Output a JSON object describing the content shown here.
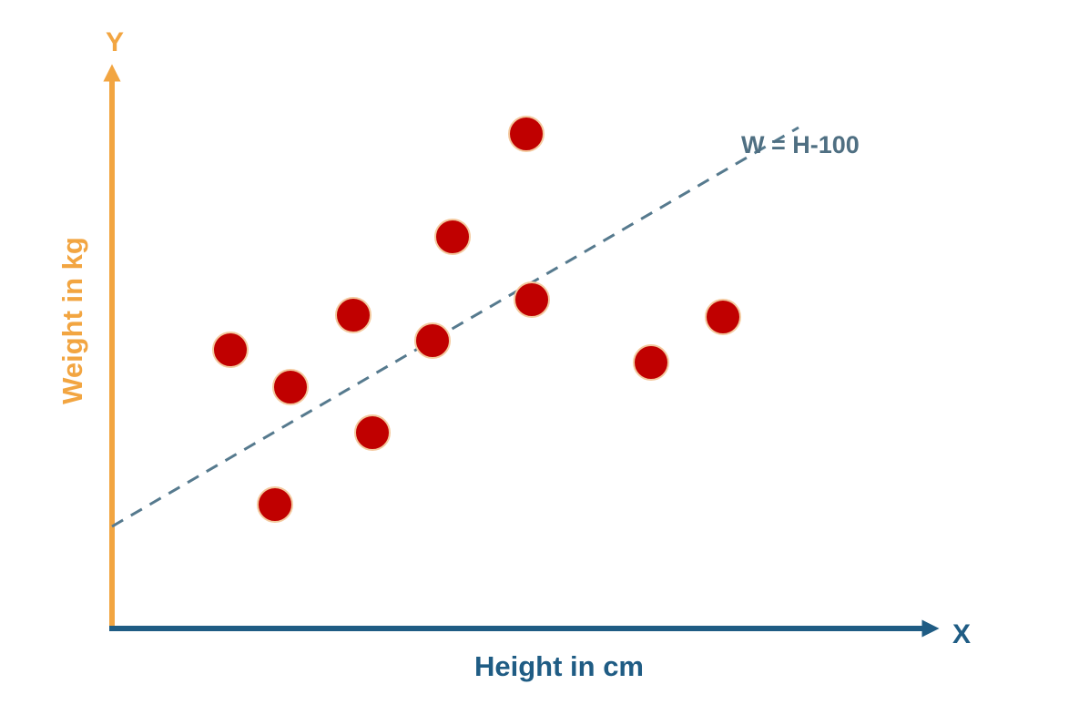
{
  "chart_data": {
    "type": "scatter",
    "title": "",
    "xlabel": "Height in cm",
    "ylabel": "Weight in kg",
    "x_axis_letter": "X",
    "y_axis_letter": "Y",
    "grid": false,
    "points": [
      {
        "x": 1.3,
        "y": 3.06
      },
      {
        "x": 1.96,
        "y": 2.65
      },
      {
        "x": 1.79,
        "y": 1.36
      },
      {
        "x": 2.65,
        "y": 3.44
      },
      {
        "x": 2.86,
        "y": 2.15
      },
      {
        "x": 3.52,
        "y": 3.16
      },
      {
        "x": 3.74,
        "y": 4.3
      },
      {
        "x": 4.55,
        "y": 5.43
      },
      {
        "x": 4.61,
        "y": 3.61
      },
      {
        "x": 5.92,
        "y": 2.92
      },
      {
        "x": 6.71,
        "y": 3.42
      }
    ],
    "trend_line": {
      "label": "W = H-100",
      "style": "dashed",
      "start": {
        "x": 0.0,
        "y": 1.12
      },
      "end": {
        "x": 7.54,
        "y": 5.5
      }
    },
    "colors": {
      "points": "#c00000",
      "point_outline": "#f3c99e",
      "y_axis": "#f2a541",
      "x_axis": "#1f5c84",
      "trend_line": "#567a8e",
      "line_label": "#4f6f82"
    }
  }
}
